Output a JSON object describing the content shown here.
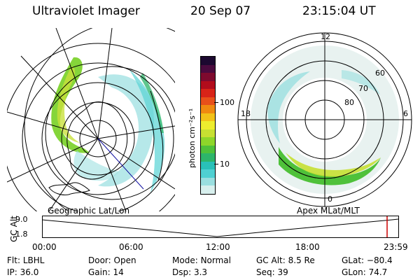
{
  "header": {
    "instrument": "Ultraviolet Imager",
    "date": "20 Sep 07",
    "time": "23:15:04 UT"
  },
  "colorbar": {
    "label": "photon cm⁻²s⁻¹",
    "ticks": [
      "100",
      "10"
    ],
    "colors": [
      "#d8f0ee",
      "#9adfe0",
      "#4fd0d2",
      "#29c0b8",
      "#2db56a",
      "#4fc13a",
      "#8ed62a",
      "#c7e032",
      "#eded2e",
      "#f2c218",
      "#f08a10",
      "#e8501a",
      "#d82418",
      "#b20c1c",
      "#7e0a2e",
      "#4a0a3e",
      "#1c0830"
    ]
  },
  "left_map": {
    "caption": "Geographic Lat/Lon"
  },
  "right_map": {
    "caption": "Apex MLat/MLT",
    "mlt_labels": [
      "12",
      "18",
      "6",
      "0"
    ],
    "lat_labels": [
      "60",
      "70",
      "80"
    ]
  },
  "timeline": {
    "ylabel": "GC Alt",
    "y_ticks": [
      "9.0",
      "1.8"
    ],
    "x_ticks": [
      "00:00",
      "06:00",
      "12:00",
      "18:00",
      "23:59"
    ],
    "marker_color": "#cc0000"
  },
  "status": {
    "row1": [
      {
        "key": "Flt:",
        "value": "LBHL"
      },
      {
        "key": "Door:",
        "value": "Open"
      },
      {
        "key": "Mode:",
        "value": "Normal"
      },
      {
        "key": "GC Alt:",
        "value": "8.5 Re"
      },
      {
        "key": "GLat:",
        "value": "−80.4"
      }
    ],
    "row2": [
      {
        "key": "IP:",
        "value": "36.0"
      },
      {
        "key": "Gain:",
        "value": "14"
      },
      {
        "key": "Dsp:",
        "value": "3.3"
      },
      {
        "key": "Seq:",
        "value": "39"
      },
      {
        "key": "GLon:",
        "value": "74.7"
      }
    ]
  }
}
